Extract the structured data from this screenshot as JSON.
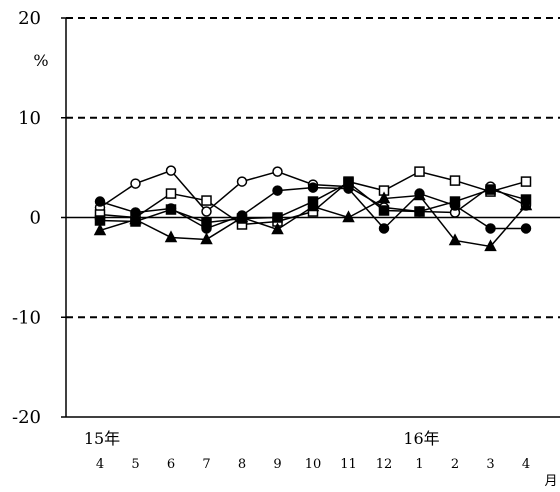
{
  "chart_data": {
    "type": "line",
    "title": "",
    "xlabel": "",
    "ylabel": "",
    "y_unit": "%",
    "x_unit": "月",
    "ylim": [
      -20,
      20
    ],
    "yticks": [
      "20",
      "10",
      "0",
      "-10",
      "-20"
    ],
    "grid": "dashed horizontal at ±10 and 20",
    "categories": [
      "4",
      "5",
      "6",
      "7",
      "8",
      "9",
      "10",
      "11",
      "12",
      "1",
      "2",
      "3",
      "4"
    ],
    "year_labels": [
      {
        "text": "15年",
        "category_index": 0
      },
      {
        "text": "16年",
        "category_index": 9
      }
    ],
    "series": [
      {
        "marker": "circle-open",
        "values": [
          1.0,
          3.4,
          4.7,
          0.6,
          3.6,
          4.6,
          3.3,
          3.1,
          1.0,
          0.6,
          0.5,
          3.1,
          1.2
        ]
      },
      {
        "marker": "square-open",
        "values": [
          0.3,
          0.0,
          2.4,
          1.7,
          -0.7,
          -0.4,
          0.6,
          3.6,
          2.7,
          4.6,
          3.7,
          2.6,
          3.6
        ]
      },
      {
        "marker": "circle-filled",
        "values": [
          1.6,
          0.5,
          0.9,
          -1.1,
          0.2,
          2.7,
          3.0,
          2.9,
          -1.1,
          2.4,
          1.2,
          -1.1,
          -1.1
        ]
      },
      {
        "marker": "square-filled",
        "values": [
          -0.3,
          -0.4,
          0.8,
          -0.5,
          -0.1,
          0.0,
          1.6,
          3.5,
          0.7,
          0.6,
          1.6,
          2.8,
          1.8
        ]
      },
      {
        "marker": "triangle-filled",
        "values": [
          -1.3,
          -0.2,
          -2.0,
          -2.2,
          0.0,
          -1.2,
          1.1,
          0.0,
          1.9,
          2.2,
          -2.3,
          -2.9,
          1.2
        ]
      }
    ]
  }
}
